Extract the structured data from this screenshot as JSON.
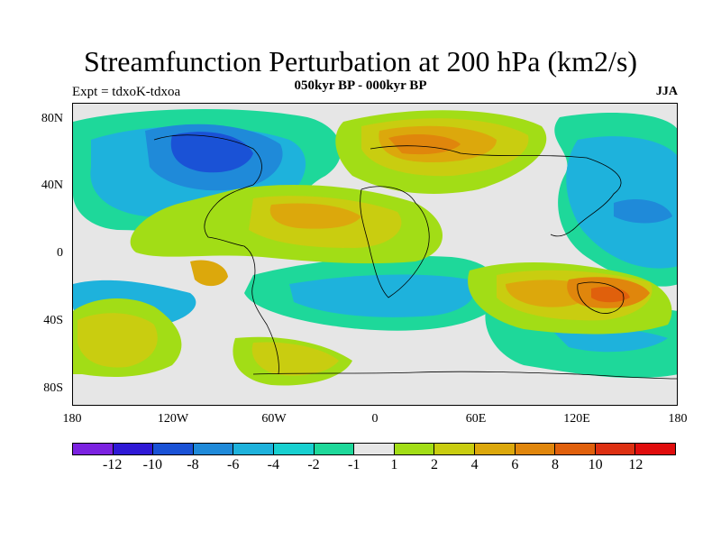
{
  "title": "Streamfunction Perturbation at 200 hPa (km2/s)",
  "subtitle": "050kyr BP - 000kyr BP",
  "left_label": "Expt = tdxoK-tdxoa",
  "right_label": "JJA",
  "y_ticks": [
    "80N",
    "40N",
    "0",
    "40S",
    "80S"
  ],
  "x_ticks": [
    "180",
    "120W",
    "60W",
    "0",
    "60E",
    "120E",
    "180"
  ],
  "colorbar": {
    "colors": [
      "#7b22e0",
      "#2f19d6",
      "#1a52d6",
      "#1f8ad9",
      "#1eb2dc",
      "#18d0d0",
      "#1ed89a",
      "#e6e6e6",
      "#a2dd16",
      "#c9cd10",
      "#dca80c",
      "#e0860c",
      "#e0600c",
      "#dd3012",
      "#e00d0d"
    ],
    "labels": [
      "-12",
      "-10",
      "-8",
      "-6",
      "-4",
      "-2",
      "-1",
      "1",
      "2",
      "4",
      "6",
      "8",
      "10",
      "12"
    ]
  },
  "icons": [
    "world-coastline-map"
  ]
}
